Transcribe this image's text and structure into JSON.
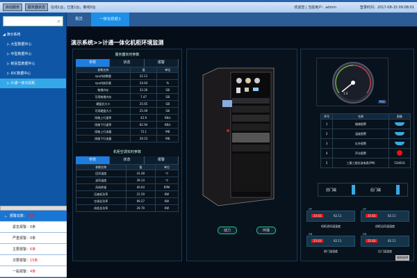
{
  "topbar": {
    "start_btn": "启动服务",
    "status_btn": "服务器状态",
    "status_text": "在线1台，已连1台，离线0台",
    "welcome": "欢迎您 | 当前用户：admin",
    "login_time": "登录时间：2017-08-15 09:08:01"
  },
  "tabs": [
    "首页",
    "一体化机柜1"
  ],
  "sidebar": {
    "items": [
      "演示系统",
      "大型数据中心",
      "中型数据中心",
      "新民型数据中心",
      "IDC数据中心",
      "计通一体化机柜"
    ]
  },
  "alarms": [
    {
      "label": "报警总数：",
      "value": "25条"
    },
    {
      "label": "紧急报警：",
      "value": "0条"
    },
    {
      "label": "严重报警：",
      "value": "0条"
    },
    {
      "label": "主要报警：",
      "value": "6条"
    },
    {
      "label": "次要报警：",
      "value": "15条"
    },
    {
      "label": "一般报警：",
      "value": "4条"
    }
  ],
  "page_title": "演示系统>>计通一体化机柜环境监测",
  "server": {
    "title": "服务器实时参数",
    "tabs": [
      "参数",
      "状态",
      "报警"
    ],
    "headers": [
      "参数名称",
      "值",
      "单位"
    ],
    "rows": [
      [
        "cpu内核数量",
        "22.11",
        ""
      ],
      [
        "cpu内核负载",
        "24.64",
        "%"
      ],
      [
        "物理内存",
        "33.26",
        "GB"
      ],
      [
        "可用物理内存",
        "7.47",
        "GB"
      ],
      [
        "硬盘总大小",
        "25.65",
        "GB"
      ],
      [
        "可用硬盘大小",
        "25.09",
        "GB"
      ],
      [
        "网络上行速率",
        "42.9",
        "KB/s"
      ],
      [
        "网络下行速率",
        "82.94",
        "KB/s"
      ],
      [
        "网络上行流量",
        "72.1",
        "MB"
      ],
      [
        "网络下行流量",
        "29.53",
        "MB"
      ]
    ]
  },
  "ac": {
    "title": "机柜空调实时参数",
    "tabs": [
      "参数",
      "状态",
      "报警"
    ],
    "headers": [
      "参数名称",
      "值",
      "单位"
    ],
    "rows": [
      [
        "回风温度",
        "41.48",
        "℃"
      ],
      [
        "送风温度",
        "39.14",
        "℃"
      ],
      [
        "风机转速",
        "40.64",
        "RPM"
      ],
      [
        "压缩机功率",
        "21.59",
        "KW"
      ],
      [
        "空调总功率",
        "99.27",
        "KW"
      ],
      [
        "机柜总功率",
        "29.79",
        "KW"
      ]
    ]
  },
  "cabinet": {
    "power_btn": "动力",
    "env_btn": "环境"
  },
  "gauge": {
    "label": "PUE",
    "ticks": [
      "1.0",
      "1.5",
      "2.0",
      "2.5",
      "3.0"
    ]
  },
  "sensors": {
    "headers": [
      "序号",
      "名称",
      "图像"
    ],
    "rows": [
      [
        "1",
        "烟感报警",
        ""
      ],
      [
        "2",
        "温度报警",
        ""
      ],
      [
        "3",
        "红外报警",
        ""
      ],
      [
        "4",
        "声光报警",
        ""
      ],
      [
        "5",
        "三菱三相交流电表(PM)",
        "534016"
      ]
    ]
  },
  "doors": [
    "前门磁",
    "后门磁"
  ],
  "widgets": [
    {
      "tag": "UP",
      "red": "25.63",
      "val": "62.11",
      "caption": "机柜进风温湿度"
    },
    {
      "tag": "UP",
      "red": "25.63",
      "val": "62.11",
      "caption": "机柜出风温湿度"
    },
    {
      "tag": "DN",
      "red": "25.63",
      "val": "62.11",
      "caption": "前门温湿度"
    },
    {
      "tag": "DN",
      "red": "25.63",
      "val": "62.11",
      "caption": "后门温湿度"
    }
  ],
  "legend_btn": "图例说明"
}
